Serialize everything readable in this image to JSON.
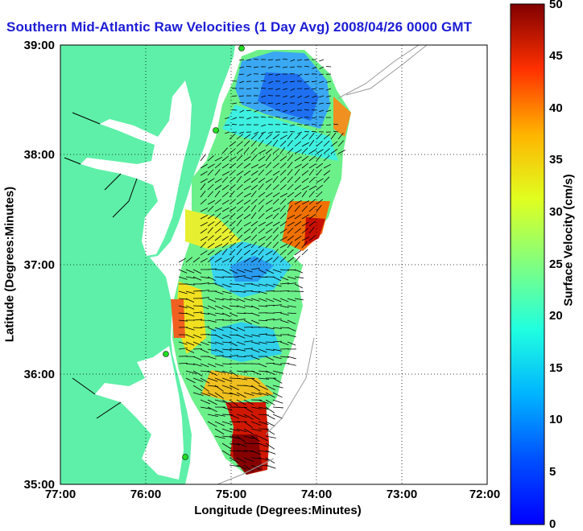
{
  "title": "Southern Mid-Atlantic Raw Velocities (1 Day Avg) 2008/04/26 0000 GMT",
  "x_axis": {
    "label": "Longitude (Degrees:Minutes)",
    "ticks": [
      "77:00",
      "76:00",
      "75:00",
      "74:00",
      "73:00",
      "72:00"
    ]
  },
  "y_axis": {
    "label": "Latitude (Degrees:Minutes)",
    "ticks": [
      "39:00",
      "38:00",
      "37:00",
      "36:00",
      "35:00"
    ]
  },
  "colorbar": {
    "label": "Surface Velocity (cm/s)",
    "min": 0,
    "max": 50,
    "ticks": [
      "0",
      "5",
      "10",
      "15",
      "20",
      "25",
      "30",
      "35",
      "40",
      "45",
      "50"
    ]
  },
  "colors": {
    "title": "#1c1cd6",
    "land": "#5ef0a8",
    "grid": "#000000"
  },
  "map_extent": {
    "lon_west": 77,
    "lon_east": 72,
    "lat_south": 35,
    "lat_north": 39
  }
}
